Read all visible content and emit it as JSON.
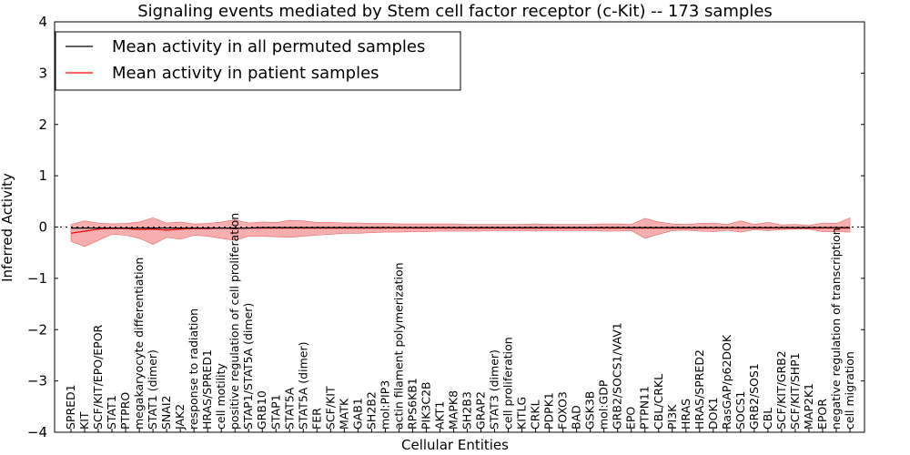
{
  "chart_data": {
    "type": "line",
    "title": "Signaling events mediated by Stem cell factor receptor (c-Kit) -- 173 samples",
    "xlabel": "Cellular Entities",
    "ylabel": "Inferred Activity",
    "ylim": [
      -4,
      4
    ],
    "yticks": [
      "−4",
      "−3",
      "−2",
      "−1",
      "0",
      "1",
      "2",
      "3",
      "4"
    ],
    "grid": false,
    "legend_position": "top-left",
    "legend": [
      "Mean activity in all permuted samples",
      "Mean activity in patient samples"
    ],
    "colors": {
      "permuted": "#000000",
      "patient": "#ff0000",
      "band": "#f4a0a0",
      "band_edge": "#e86a6a"
    },
    "categories": [
      "SPRED1",
      "KIT",
      "SCF/KIT/EPO/EPOR",
      "STAT1",
      "PTPRO",
      "megakaryocyte differentiation",
      "STAT1 (dimer)",
      "SNAI2",
      "JAK2",
      "response to radiation",
      "HRAS/SPRED1",
      "cell motility",
      "positive regulation of cell proliferation",
      "STAP1/STAT5A (dimer)",
      "GRB10",
      "STAP1",
      "STAT5A",
      "STAT5A (dimer)",
      "FER",
      "SCF/KIT",
      "MATK",
      "GAB1",
      "SH2B2",
      "mol:PIP3",
      "actin filament polymerization",
      "RPS6KB1",
      "PIK3C2B",
      "AKT1",
      "MAPK8",
      "SH2B3",
      "GRAP2",
      "STAT3 (dimer)",
      "cell proliferation",
      "KITLG",
      "CRKL",
      "PDPK1",
      "FOXO3",
      "BAD",
      "GSK3B",
      "mol:GDP",
      "GRB2/SOCS1/VAV1",
      "EPO",
      "PTPN11",
      "CBL/CRKL",
      "PI3K",
      "HRAS",
      "HRAS/SPRED2",
      "DOK1",
      "RasGAP/p62DOK",
      "SOCS1",
      "GRB2/SOS1",
      "CBL",
      "SCF/KIT/GRB2",
      "SCF/KIT/SHP1",
      "MAP2K1",
      "EPOR",
      "negative regulation of transcription",
      "cell migration"
    ],
    "label_indices": [
      0,
      1,
      2,
      3,
      4,
      5,
      6,
      7,
      8,
      9,
      10,
      11,
      12,
      13,
      14,
      15,
      16,
      17,
      18,
      19,
      20,
      21,
      22,
      23,
      24,
      25,
      26,
      27,
      28,
      29,
      30,
      31,
      32,
      33,
      34,
      35,
      36,
      37,
      38,
      39,
      40,
      41,
      42,
      43,
      44,
      45,
      46,
      47,
      48,
      49,
      50,
      51,
      52,
      53,
      54,
      55,
      56,
      57
    ],
    "permuted_mean": [
      -0.02,
      -0.02,
      -0.02,
      -0.02,
      -0.02,
      -0.02,
      -0.02,
      -0.02,
      -0.02,
      -0.02,
      -0.02,
      -0.02,
      -0.02,
      -0.02,
      -0.01,
      -0.01,
      -0.01,
      -0.01,
      -0.01,
      -0.01,
      -0.01,
      -0.01,
      -0.01,
      -0.01,
      -0.01,
      -0.01,
      -0.01,
      -0.01,
      -0.01,
      -0.01,
      -0.01,
      -0.01,
      -0.01,
      -0.01,
      -0.01,
      -0.01,
      -0.01,
      -0.01,
      -0.01,
      -0.01,
      -0.01,
      -0.01,
      -0.01,
      -0.01,
      -0.01,
      -0.01,
      -0.01,
      -0.01,
      -0.01,
      -0.01,
      -0.01,
      -0.01,
      -0.01,
      -0.01,
      -0.01,
      -0.01,
      -0.01,
      -0.01
    ],
    "patient_mean": [
      -0.12,
      -0.08,
      -0.04,
      -0.03,
      -0.03,
      -0.05,
      -0.04,
      -0.06,
      -0.04,
      -0.03,
      -0.03,
      -0.02,
      -0.03,
      -0.02,
      -0.02,
      -0.02,
      -0.02,
      -0.02,
      -0.02,
      -0.02,
      -0.02,
      -0.02,
      -0.02,
      -0.02,
      -0.02,
      -0.02,
      -0.02,
      -0.02,
      -0.02,
      -0.02,
      -0.02,
      -0.02,
      -0.02,
      -0.02,
      -0.02,
      -0.02,
      -0.02,
      -0.02,
      -0.02,
      -0.02,
      -0.02,
      -0.02,
      -0.02,
      -0.02,
      -0.02,
      -0.02,
      -0.02,
      -0.02,
      -0.02,
      -0.02,
      -0.02,
      -0.02,
      -0.02,
      -0.02,
      -0.02,
      -0.02,
      -0.02,
      -0.02
    ],
    "band_upper": [
      0.05,
      0.12,
      0.08,
      0.06,
      0.07,
      0.1,
      0.18,
      0.08,
      0.1,
      0.06,
      0.07,
      0.1,
      0.14,
      0.08,
      0.1,
      0.09,
      0.13,
      0.12,
      0.09,
      0.09,
      0.08,
      0.08,
      0.07,
      0.07,
      0.06,
      0.06,
      0.06,
      0.06,
      0.06,
      0.05,
      0.05,
      0.05,
      0.05,
      0.05,
      0.06,
      0.05,
      0.05,
      0.05,
      0.05,
      0.06,
      0.06,
      0.05,
      0.17,
      0.1,
      0.06,
      0.05,
      0.07,
      0.08,
      0.05,
      0.12,
      0.05,
      0.09,
      0.04,
      0.05,
      0.03,
      0.08,
      0.07,
      0.18
    ],
    "band_lower": [
      -0.28,
      -0.38,
      -0.26,
      -0.14,
      -0.16,
      -0.22,
      -0.34,
      -0.2,
      -0.24,
      -0.16,
      -0.18,
      -0.22,
      -0.26,
      -0.18,
      -0.18,
      -0.19,
      -0.2,
      -0.18,
      -0.16,
      -0.14,
      -0.12,
      -0.12,
      -0.11,
      -0.1,
      -0.1,
      -0.09,
      -0.09,
      -0.08,
      -0.08,
      -0.08,
      -0.08,
      -0.07,
      -0.07,
      -0.07,
      -0.08,
      -0.07,
      -0.07,
      -0.07,
      -0.07,
      -0.08,
      -0.08,
      -0.07,
      -0.22,
      -0.14,
      -0.07,
      -0.06,
      -0.08,
      -0.09,
      -0.06,
      -0.1,
      -0.05,
      -0.07,
      -0.05,
      -0.04,
      -0.04,
      -0.09,
      -0.09,
      -0.1
    ]
  }
}
